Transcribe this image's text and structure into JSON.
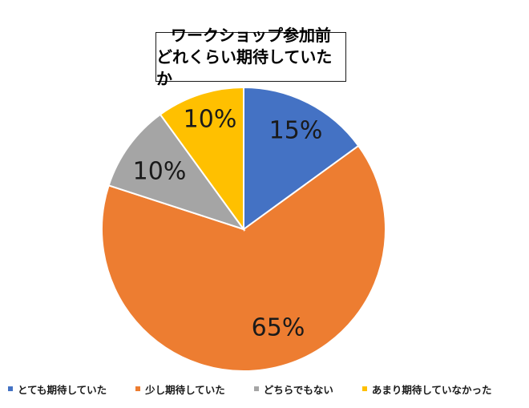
{
  "chart_data": {
    "type": "pie",
    "title_lines": [
      "ワークショップ参加前",
      "どれくらい期待していたか"
    ],
    "slices": [
      {
        "name": "とても期待していた",
        "value": 15,
        "label": "15%",
        "color": "#4472C4"
      },
      {
        "name": "少し期待していた",
        "value": 65,
        "label": "65%",
        "color": "#ED7D31"
      },
      {
        "name": "どちらでもない",
        "value": 10,
        "label": "10%",
        "color": "#A5A5A5"
      },
      {
        "name": "あまり期待していなかった",
        "value": 10,
        "label": "10%",
        "color": "#FFC000"
      }
    ],
    "legend_position": "bottom",
    "start_angle": "12 o'clock, clockwise"
  }
}
